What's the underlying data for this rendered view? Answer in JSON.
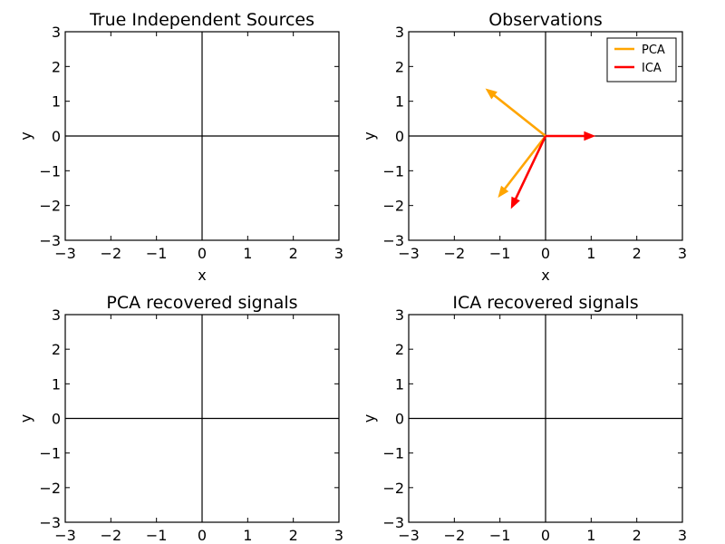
{
  "chart_data": [
    {
      "type": "line",
      "title": "True Independent Sources",
      "xlabel": "x",
      "ylabel": "y",
      "xlim": [
        -3,
        3
      ],
      "ylim": [
        -3,
        3
      ],
      "xticks": [
        -3,
        -2,
        -1,
        0,
        1,
        2,
        3
      ],
      "yticks": [
        -3,
        -2,
        -1,
        0,
        1,
        2,
        3
      ],
      "zero_lines": true,
      "grid": false,
      "series": [],
      "legend": null
    },
    {
      "type": "line",
      "title": "Observations",
      "xlabel": "x",
      "ylabel": "y",
      "xlim": [
        -3,
        3
      ],
      "ylim": [
        -3,
        3
      ],
      "xticks": [
        -3,
        -2,
        -1,
        0,
        1,
        2,
        3
      ],
      "yticks": [
        -3,
        -2,
        -1,
        0,
        1,
        2,
        3
      ],
      "zero_lines": true,
      "grid": false,
      "series": [
        {
          "name": "PCA",
          "color": "#ffa500",
          "vectors": [
            {
              "x": [
                0,
                -1.3
              ],
              "y": [
                0,
                1.35
              ]
            },
            {
              "x": [
                0,
                -1.03
              ],
              "y": [
                0,
                -1.75
              ]
            }
          ]
        },
        {
          "name": "ICA",
          "color": "#ff0000",
          "vectors": [
            {
              "x": [
                0,
                1.07
              ],
              "y": [
                0,
                0.0
              ]
            },
            {
              "x": [
                0,
                -0.75
              ],
              "y": [
                0,
                -2.07
              ]
            }
          ]
        }
      ],
      "legend": "top-right"
    },
    {
      "type": "line",
      "title": "PCA recovered signals",
      "xlabel": "",
      "ylabel": "y",
      "xlim": [
        -3,
        3
      ],
      "ylim": [
        -3,
        3
      ],
      "xticks": [
        -3,
        -2,
        -1,
        0,
        1,
        2,
        3
      ],
      "yticks": [
        -3,
        -2,
        -1,
        0,
        1,
        2,
        3
      ],
      "zero_lines": true,
      "grid": false,
      "series": [],
      "legend": null
    },
    {
      "type": "line",
      "title": "ICA recovered signals",
      "xlabel": "",
      "ylabel": "y",
      "xlim": [
        -3,
        3
      ],
      "ylim": [
        -3,
        3
      ],
      "xticks": [
        -3,
        -2,
        -1,
        0,
        1,
        2,
        3
      ],
      "yticks": [
        -3,
        -2,
        -1,
        0,
        1,
        2,
        3
      ],
      "zero_lines": true,
      "grid": false,
      "series": [],
      "legend": null
    }
  ]
}
